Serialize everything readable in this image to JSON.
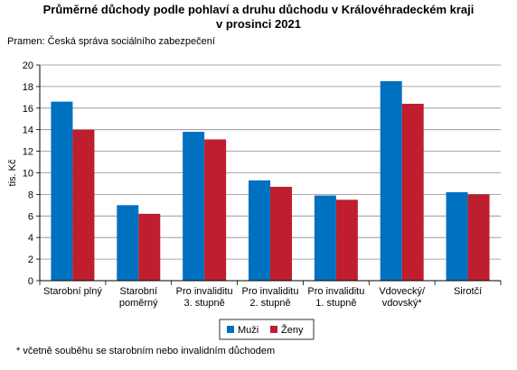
{
  "title_line1": "Průměrné důchody podle pohlaví a druhu důchodu v Královéhradeckém kraji",
  "title_line2": "v prosinci 2021",
  "source": "Pramen: Česká správa sociálního zabezpečení",
  "footnote": "* včetně souběhu se starobním nebo invalidním důchodem",
  "chart_data": {
    "type": "bar",
    "title": "Průměrné důchody podle pohlaví a druhu důchodu v Královéhradeckém kraji v prosinci 2021",
    "xlabel": "",
    "ylabel": "tis. Kč",
    "ylim": [
      0,
      20
    ],
    "yticks": [
      0,
      2,
      4,
      6,
      8,
      10,
      12,
      14,
      16,
      18,
      20
    ],
    "grid": true,
    "legend_position": "bottom",
    "categories": [
      [
        "Starobní plný"
      ],
      [
        "Starobní",
        "poměrný"
      ],
      [
        "Pro invaliditu",
        "3. stupně"
      ],
      [
        "Pro invaliditu",
        "2. stupně"
      ],
      [
        "Pro invaliditu",
        "1. stupně"
      ],
      [
        "Vdovecký/",
        "vdovský*"
      ],
      [
        "Sirotčí"
      ]
    ],
    "series": [
      {
        "name": "Muži",
        "color": "#0070c0",
        "values": [
          16.6,
          7.0,
          13.8,
          9.3,
          7.9,
          18.5,
          8.2
        ]
      },
      {
        "name": "Ženy",
        "color": "#be1e2d",
        "values": [
          14.0,
          6.2,
          13.1,
          8.7,
          7.5,
          16.4,
          8.0
        ]
      }
    ]
  }
}
